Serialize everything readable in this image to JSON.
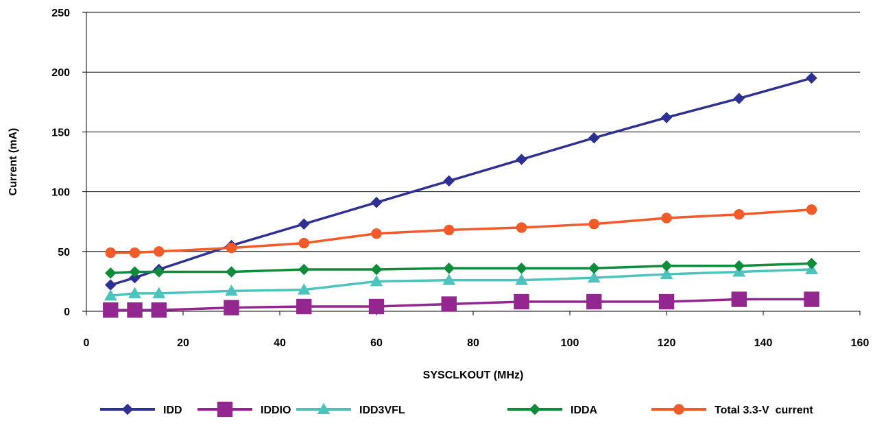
{
  "chart_data": {
    "type": "line",
    "xlabel": "SYSCLKOUT (MHz)",
    "ylabel": "Current (mA)",
    "xlim": [
      0,
      160
    ],
    "ylim": [
      0,
      250
    ],
    "xticks": [
      0,
      20,
      40,
      60,
      80,
      100,
      120,
      140,
      160
    ],
    "yticks": [
      0,
      50,
      100,
      150,
      200,
      250
    ],
    "grid": "horizontal",
    "legend_position": "bottom",
    "x": [
      5,
      10,
      15,
      30,
      45,
      60,
      75,
      90,
      105,
      120,
      135,
      150
    ],
    "series": [
      {
        "name": "IDD",
        "color": "#2E3192",
        "marker": "diamond",
        "values": [
          22,
          28,
          35,
          55,
          73,
          91,
          109,
          127,
          145,
          162,
          178,
          195
        ]
      },
      {
        "name": "IDDIO",
        "color": "#93278F",
        "marker": "square",
        "values": [
          1,
          1,
          1,
          3,
          4,
          4,
          6,
          8,
          8,
          8,
          10,
          10
        ]
      },
      {
        "name": "IDD3VFL",
        "color": "#4DC3BE",
        "marker": "triangle",
        "values": [
          13,
          15,
          15,
          17,
          18,
          25,
          26,
          26,
          28,
          31,
          33,
          35
        ]
      },
      {
        "name": "IDDA",
        "color": "#0E8C3A",
        "marker": "diamond",
        "values": [
          32,
          33,
          33,
          33,
          35,
          35,
          36,
          36,
          36,
          38,
          38,
          40
        ]
      },
      {
        "name": "Total 3.3-V  current",
        "color": "#F15A29",
        "marker": "circle",
        "values": [
          49,
          49,
          50,
          53,
          57,
          65,
          68,
          70,
          73,
          78,
          81,
          85
        ]
      }
    ]
  }
}
